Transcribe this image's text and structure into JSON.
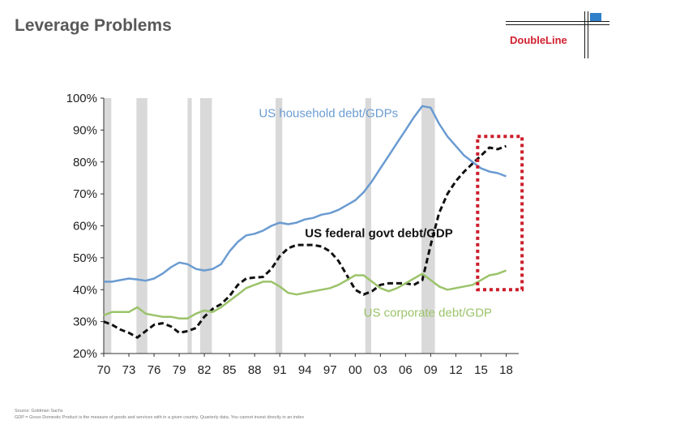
{
  "title": "Leverage Problems",
  "logo_text": "DoubleLine",
  "source_note": "Source: Goldman Sachs",
  "gdp_note": "GDP = Gross Domestic Product is the measure of goods and services with in a given country. Quarterly data. You cannot invest directly in an index",
  "colors": {
    "household": "#6a9bd1",
    "federal": "#111111",
    "corporate": "#9bc36a",
    "recession": "#d9d9d9",
    "highlight": "#cc1d2a"
  },
  "chart_data": {
    "type": "line",
    "ylim": [
      20,
      100
    ],
    "xlim": [
      1970,
      2019.5
    ],
    "y_ticks": [
      20,
      30,
      40,
      50,
      60,
      70,
      80,
      90,
      100
    ],
    "y_tick_labels": [
      "20%",
      "30%",
      "40%",
      "50%",
      "60%",
      "70%",
      "80%",
      "90%",
      "100%"
    ],
    "x_ticks": [
      1970,
      1973,
      1976,
      1979,
      1982,
      1985,
      1988,
      1991,
      1994,
      1997,
      2000,
      2003,
      2006,
      2009,
      2012,
      2015,
      2018
    ],
    "x_tick_labels": [
      "70",
      "73",
      "76",
      "79",
      "82",
      "85",
      "88",
      "91",
      "94",
      "97",
      "00",
      "03",
      "06",
      "09",
      "12",
      "15",
      "18"
    ],
    "recessions": [
      [
        1970,
        1970.9
      ],
      [
        1973.9,
        1975.2
      ],
      [
        1980,
        1980.5
      ],
      [
        1981.5,
        1982.9
      ],
      [
        1990.5,
        1991.3
      ],
      [
        2001.2,
        2001.9
      ],
      [
        2007.9,
        2009.5
      ]
    ],
    "highlight_x": [
      2014.6,
      2019.9
    ],
    "highlight_y": [
      40,
      88
    ],
    "series": [
      {
        "name": "US household debt/GDPs",
        "label_at": [
          1988.5,
          94
        ],
        "x": [
          1970,
          1971,
          1972,
          1973,
          1974,
          1975,
          1976,
          1977,
          1978,
          1979,
          1980,
          1981,
          1982,
          1983,
          1984,
          1985,
          1986,
          1987,
          1988,
          1989,
          1990,
          1991,
          1992,
          1993,
          1994,
          1995,
          1996,
          1997,
          1998,
          1999,
          2000,
          2001,
          2002,
          2003,
          2004,
          2005,
          2006,
          2007,
          2008,
          2009,
          2010,
          2011,
          2012,
          2013,
          2014,
          2015,
          2016,
          2017,
          2018
        ],
        "y": [
          42.5,
          42.5,
          43,
          43.5,
          43.2,
          42.8,
          43.5,
          45,
          47,
          48.5,
          48,
          46.5,
          46,
          46.5,
          48,
          52,
          55,
          57,
          57.5,
          58.5,
          60,
          61,
          60.5,
          61,
          62,
          62.5,
          63.5,
          64,
          65,
          66.5,
          68,
          70.5,
          74,
          78,
          82,
          86,
          90,
          94,
          97.5,
          97,
          92,
          88,
          85,
          82,
          80,
          78,
          77,
          76.5,
          75.5
        ]
      },
      {
        "name": "US federal govt debt/GDP",
        "label_at": [
          1994,
          56.5
        ],
        "x": [
          1970,
          1971,
          1972,
          1973,
          1974,
          1975,
          1976,
          1977,
          1978,
          1979,
          1980,
          1981,
          1982,
          1983,
          1984,
          1985,
          1986,
          1987,
          1988,
          1989,
          1990,
          1991,
          1992,
          1993,
          1994,
          1995,
          1996,
          1997,
          1998,
          1999,
          2000,
          2001,
          2002,
          2003,
          2004,
          2005,
          2006,
          2007,
          2008,
          2009,
          2010,
          2011,
          2012,
          2013,
          2014,
          2015,
          2016,
          2017,
          2018
        ],
        "y": [
          30,
          29,
          27.5,
          26.5,
          25,
          27,
          29,
          29.5,
          28.5,
          26.5,
          27,
          28,
          31.5,
          34,
          35.5,
          38,
          41.5,
          43.5,
          43.8,
          44,
          46.5,
          50.5,
          53,
          54,
          54,
          54,
          53.5,
          52,
          49,
          44.5,
          40,
          38.5,
          39.5,
          41.5,
          42,
          42,
          42,
          41.5,
          43,
          54,
          64,
          70,
          74,
          77,
          79.5,
          82,
          84.5,
          84,
          85
        ]
      },
      {
        "name": "US corporate debt/GDP",
        "label_at": [
          2001,
          31.5
        ],
        "x": [
          1970,
          1971,
          1972,
          1973,
          1974,
          1975,
          1976,
          1977,
          1978,
          1979,
          1980,
          1981,
          1982,
          1983,
          1984,
          1985,
          1986,
          1987,
          1988,
          1989,
          1990,
          1991,
          1992,
          1993,
          1994,
          1995,
          1996,
          1997,
          1998,
          1999,
          2000,
          2001,
          2002,
          2003,
          2004,
          2005,
          2006,
          2007,
          2008,
          2009,
          2010,
          2011,
          2012,
          2013,
          2014,
          2015,
          2016,
          2017,
          2018
        ],
        "y": [
          32,
          33,
          33,
          33,
          34.5,
          32.5,
          32,
          31.5,
          31.5,
          31,
          31,
          32.5,
          33.5,
          33,
          34.5,
          36.5,
          38.5,
          40.5,
          41.5,
          42.5,
          42.5,
          41,
          39,
          38.5,
          39,
          39.5,
          40,
          40.5,
          41.5,
          43,
          44.5,
          44.5,
          42.5,
          40.5,
          39.5,
          40.5,
          42,
          43.5,
          45,
          43,
          41,
          40,
          40.5,
          41,
          41.5,
          43,
          44.5,
          45,
          46
        ]
      }
    ]
  }
}
